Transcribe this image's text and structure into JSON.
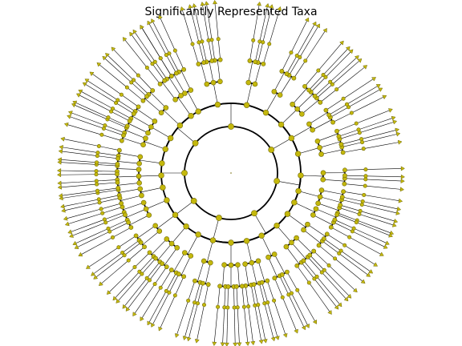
{
  "title": "Significantly Represented Taxa",
  "colors": {
    "node_fill": "#c4b80c",
    "node_edge": "#6f6808",
    "branch": "#000000",
    "background": "#ffffff"
  },
  "tree": {
    "layout": "circular",
    "ring_radii": [
      0,
      58,
      87,
      115,
      142,
      168,
      192,
      214
    ],
    "root_angle_deg": 0,
    "root_arc_deg": [
      0,
      360
    ],
    "level1_nodes": [
      {
        "angle": 90,
        "sub": [
          [
            118,
            2
          ],
          [
            101,
            3
          ],
          [
            77,
            2
          ],
          [
            60,
            2
          ]
        ]
      },
      {
        "angle": 30,
        "sub": [
          [
            44,
            3
          ],
          [
            30,
            2
          ],
          [
            16,
            3
          ]
        ]
      },
      {
        "angle": -10,
        "sub": [
          [
            -2,
            2
          ],
          [
            -15,
            3
          ],
          [
            -25,
            2
          ]
        ]
      },
      {
        "angle": -60,
        "sub": [
          [
            -36,
            2
          ],
          [
            -49,
            3
          ],
          [
            -64,
            2
          ],
          [
            -77,
            3
          ]
        ]
      },
      {
        "angle": -105,
        "sub": [
          [
            -90,
            3
          ],
          [
            -105,
            2
          ],
          [
            -118,
            2
          ]
        ]
      },
      {
        "angle": -143,
        "sub": [
          [
            -130,
            3
          ],
          [
            -143,
            2
          ],
          [
            -157,
            3
          ]
        ]
      },
      {
        "angle": 180,
        "sub": [
          [
            -168,
            2
          ],
          [
            -178,
            3
          ],
          [
            172,
            2
          ]
        ]
      },
      {
        "angle": 140,
        "sub": [
          [
            160,
            2
          ],
          [
            150,
            3
          ],
          [
            137,
            2
          ],
          [
            125,
            2
          ]
        ]
      }
    ]
  }
}
